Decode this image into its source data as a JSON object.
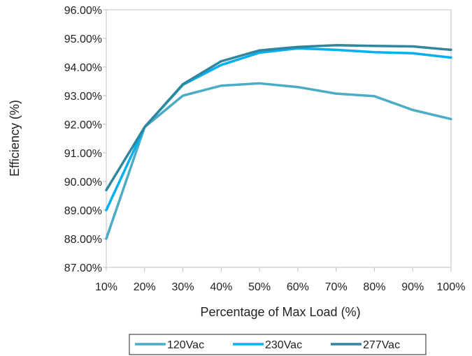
{
  "chart_data": {
    "type": "line",
    "title": "",
    "xlabel": "Percentage of Max Load (%)",
    "ylabel": "Efficiency (%)",
    "categories": [
      "10%",
      "20%",
      "30%",
      "40%",
      "50%",
      "60%",
      "70%",
      "80%",
      "90%",
      "100%"
    ],
    "y_ticks": [
      "87.00%",
      "88.00%",
      "89.00%",
      "90.00%",
      "91.00%",
      "92.00%",
      "93.00%",
      "94.00%",
      "95.00%",
      "96.00%"
    ],
    "ylim": [
      87,
      96
    ],
    "grid": false,
    "legend_position": "bottom",
    "series": [
      {
        "name": "120Vac",
        "color": "#4BACC6",
        "values": [
          88.0,
          91.9,
          93.0,
          93.35,
          93.43,
          93.3,
          93.07,
          92.98,
          92.5,
          92.18
        ]
      },
      {
        "name": "230Vac",
        "color": "#00B0F0",
        "values": [
          89.0,
          91.9,
          93.38,
          94.07,
          94.5,
          94.65,
          94.6,
          94.52,
          94.48,
          94.33
        ]
      },
      {
        "name": "277Vac",
        "color": "#31859C",
        "values": [
          89.7,
          91.9,
          93.4,
          94.2,
          94.58,
          94.7,
          94.76,
          94.74,
          94.72,
          94.6
        ]
      }
    ]
  }
}
